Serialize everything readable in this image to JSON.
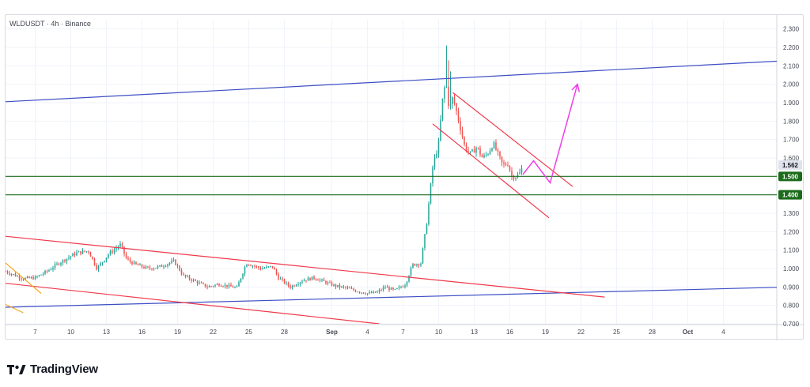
{
  "header": {
    "title": "WLDUSDT · 4h · Binance"
  },
  "branding": {
    "name": "TradingView",
    "logo_icon": "tradingview-logo-icon"
  },
  "colors": {
    "up": "#26a69a",
    "down": "#ef5350",
    "channel_blue": "#3d4fc4",
    "channel_red": "#f0394a",
    "support_green": "#1b6b1b",
    "projection": "#f03fe6",
    "orange": "#f5a623",
    "grid": "#f0f3fa"
  },
  "chart_data": {
    "type": "candlestick",
    "symbol": "WLDUSDT",
    "interval": "4h",
    "exchange": "Binance",
    "y_axis": {
      "side": "right",
      "ylim": [
        0.7,
        2.35
      ],
      "tick_labels": [
        "2.300",
        "2.200",
        "2.100",
        "2.000",
        "1.900",
        "1.800",
        "1.700",
        "1.600",
        "1.300",
        "1.200",
        "1.100",
        "1.000",
        "0.900",
        "0.800",
        "0.700"
      ],
      "tick_values": [
        2.3,
        2.2,
        2.1,
        2.0,
        1.9,
        1.8,
        1.7,
        1.6,
        1.3,
        1.2,
        1.1,
        1.0,
        0.9,
        0.8,
        0.7
      ]
    },
    "x_axis": {
      "tick_labels": [
        "7",
        "10",
        "13",
        "16",
        "19",
        "22",
        "25",
        "28",
        "Sep",
        "4",
        "7",
        "10",
        "13",
        "16",
        "19",
        "22",
        "25",
        "28",
        "Oct",
        "4"
      ],
      "tick_days": [
        7,
        10,
        13,
        16,
        19,
        22,
        25,
        28,
        32,
        35,
        38,
        41,
        44,
        47,
        50,
        53,
        56,
        59,
        62,
        65
      ],
      "xlim_days": [
        4.5,
        69.5
      ],
      "bold_labels": [
        "Sep",
        "Oct"
      ]
    },
    "price_labels": [
      {
        "value": 1.562,
        "text": "1.562",
        "style": "current"
      },
      {
        "value": 1.5,
        "text": "1.500",
        "style": "level"
      },
      {
        "value": 1.4,
        "text": "1.400",
        "style": "level"
      }
    ],
    "anchors": [
      [
        4.5,
        0.985
      ],
      [
        6,
        0.945
      ],
      [
        7,
        0.95
      ],
      [
        8,
        0.985
      ],
      [
        9,
        1.03
      ],
      [
        10.5,
        1.085
      ],
      [
        11.5,
        1.095
      ],
      [
        12.2,
        1.0
      ],
      [
        13.2,
        1.08
      ],
      [
        14.2,
        1.13
      ],
      [
        14.7,
        1.05
      ],
      [
        15.5,
        1.02
      ],
      [
        16.5,
        1.0
      ],
      [
        17.5,
        1.01
      ],
      [
        18.7,
        1.04
      ],
      [
        19.5,
        0.96
      ],
      [
        20.5,
        0.93
      ],
      [
        21.5,
        0.9
      ],
      [
        22.5,
        0.915
      ],
      [
        24,
        0.895
      ],
      [
        24.8,
        1.03
      ],
      [
        26,
        1.0
      ],
      [
        27,
        1.01
      ],
      [
        27.5,
        0.95
      ],
      [
        28.5,
        0.9
      ],
      [
        29.5,
        0.935
      ],
      [
        30.5,
        0.95
      ],
      [
        31.5,
        0.925
      ],
      [
        32.3,
        0.905
      ],
      [
        33.2,
        0.895
      ],
      [
        34,
        0.88
      ],
      [
        35,
        0.865
      ],
      [
        35.8,
        0.87
      ],
      [
        36.5,
        0.9
      ],
      [
        37.3,
        0.88
      ],
      [
        38.2,
        0.915
      ],
      [
        38.8,
        1.02
      ],
      [
        39.5,
        1.03
      ],
      [
        40,
        1.25
      ],
      [
        40.5,
        1.55
      ],
      [
        41,
        1.68
      ],
      [
        41.3,
        1.9
      ],
      [
        41.6,
        2.02
      ],
      [
        41.9,
        1.86
      ],
      [
        42.2,
        1.93
      ],
      [
        42.7,
        1.8
      ],
      [
        43.2,
        1.66
      ],
      [
        43.7,
        1.62
      ],
      [
        44.2,
        1.66
      ],
      [
        44.7,
        1.6
      ],
      [
        45.2,
        1.63
      ],
      [
        45.6,
        1.68
      ],
      [
        46,
        1.62
      ],
      [
        46.4,
        1.56
      ],
      [
        46.9,
        1.57
      ],
      [
        47.1,
        1.5
      ],
      [
        47.5,
        1.5
      ],
      [
        47.9,
        1.52
      ],
      [
        48.1,
        1.56
      ]
    ],
    "spikes": [
      {
        "day": 41.6,
        "high": 2.21
      },
      {
        "day": 41.8,
        "high": 2.13
      },
      {
        "day": 42.0,
        "high": 2.07
      }
    ],
    "trendlines": [
      {
        "id": "upper-blue-line",
        "color": "#3d4fc4",
        "points": [
          [
            4.5,
            1.905
          ],
          [
            69.5,
            2.125
          ]
        ]
      },
      {
        "id": "lower-blue-line",
        "color": "#3d4fc4",
        "points": [
          [
            4.5,
            0.79
          ],
          [
            69.5,
            0.898
          ]
        ]
      },
      {
        "id": "red-channel-top",
        "color": "#f0394a",
        "points": [
          [
            4.5,
            1.175
          ],
          [
            55,
            0.845
          ]
        ]
      },
      {
        "id": "red-channel-bottom",
        "color": "#f0394a",
        "points": [
          [
            4.5,
            0.92
          ],
          [
            36,
            0.7
          ]
        ]
      },
      {
        "id": "flag-top-line",
        "color": "#f0394a",
        "points": [
          [
            42.2,
            1.955
          ],
          [
            52.3,
            1.445
          ]
        ]
      },
      {
        "id": "flag-bottom-line",
        "color": "#f0394a",
        "points": [
          [
            40.5,
            1.785
          ],
          [
            50.3,
            1.275
          ]
        ]
      },
      {
        "id": "orange-line-top",
        "color": "#f5a623",
        "points": [
          [
            4.5,
            1.03
          ],
          [
            7.5,
            0.865
          ]
        ]
      },
      {
        "id": "orange-line-bottom",
        "color": "#f5a623",
        "points": [
          [
            4.5,
            0.805
          ],
          [
            6,
            0.76
          ]
        ]
      },
      {
        "id": "support-1500",
        "color": "#1b6b1b",
        "points": [
          [
            4.5,
            1.5
          ],
          [
            69.5,
            1.5
          ]
        ]
      },
      {
        "id": "support-1400",
        "color": "#1b6b1b",
        "points": [
          [
            4.5,
            1.4
          ],
          [
            69.5,
            1.4
          ]
        ]
      }
    ],
    "projection": {
      "color": "#f03fe6",
      "points": [
        [
          48.1,
          1.51
        ],
        [
          49,
          1.585
        ],
        [
          50.4,
          1.465
        ],
        [
          52.7,
          2.0
        ]
      ]
    }
  }
}
